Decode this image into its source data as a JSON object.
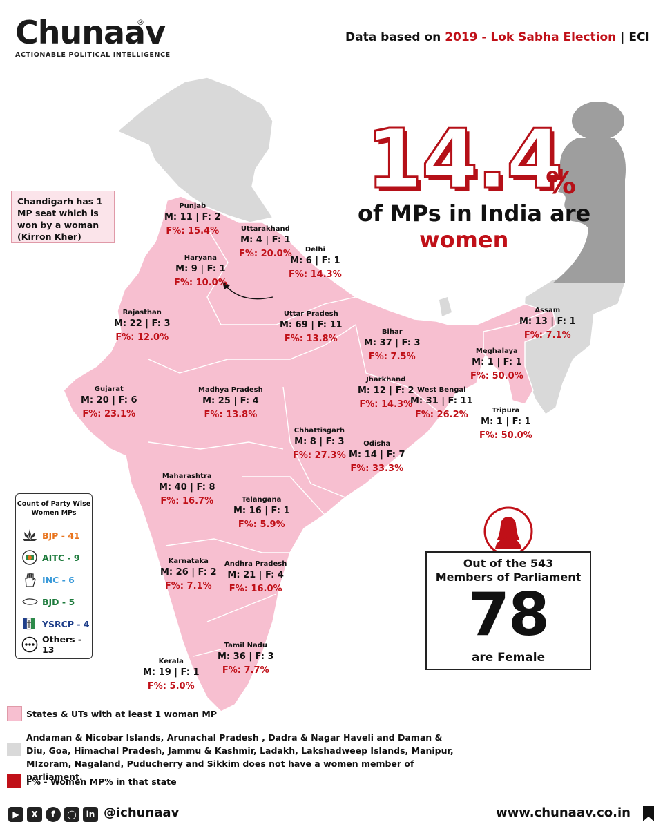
{
  "header": {
    "brand": "Chunaav",
    "brand_reg": "®",
    "tagline": "ACTIONABLE POLITICAL INTELLIGENCE",
    "source_prefix": "Data based on ",
    "source_highlight": "2019 - Lok Sabha Election",
    "source_suffix": " | ECI"
  },
  "headline": {
    "big_number": "14.4",
    "percent_sign": "%",
    "line1": "of MPs in India are",
    "line2": "women"
  },
  "note": {
    "chandigarh": "Chandigarh has 1 MP seat which is won by a woman (Kirron Kher)"
  },
  "colors": {
    "state_with_woman_mp": "#f7bfd0",
    "state_without": "#d9d9d9",
    "accent_red": "#c01018"
  },
  "states": [
    {
      "name": "Punjab",
      "counts": "M: 11 | F: 2",
      "pct": "F%: 15.4%"
    },
    {
      "name": "Uttarakhand",
      "counts": "M: 4 | F: 1",
      "pct": "F%: 20.0%"
    },
    {
      "name": "Delhi",
      "counts": "M: 6 | F: 1",
      "pct": "F%: 14.3%"
    },
    {
      "name": "Haryana",
      "counts": "M: 9 | F: 1",
      "pct": "F%: 10.0%"
    },
    {
      "name": "Rajasthan",
      "counts": "M: 22 | F: 3",
      "pct": "F%: 12.0%"
    },
    {
      "name": "Uttar Pradesh",
      "counts": "M: 69 | F: 11",
      "pct": "F%: 13.8%"
    },
    {
      "name": "Bihar",
      "counts": "M: 37 | F: 3",
      "pct": "F%: 7.5%"
    },
    {
      "name": "Assam",
      "counts": "M: 13 | F: 1",
      "pct": "F%: 7.1%"
    },
    {
      "name": "Meghalaya",
      "counts": "M: 1 | F: 1",
      "pct": "F%: 50.0%"
    },
    {
      "name": "Gujarat",
      "counts": "M: 20 | F: 6",
      "pct": "F%: 23.1%"
    },
    {
      "name": "Madhya Pradesh",
      "counts": "M: 25 | F: 4",
      "pct": "F%: 13.8%"
    },
    {
      "name": "Jharkhand",
      "counts": "M: 12 | F: 2",
      "pct": "F%: 14.3%"
    },
    {
      "name": "West Bengal",
      "counts": "M: 31 | F: 11",
      "pct": "F%: 26.2%"
    },
    {
      "name": "Tripura",
      "counts": "M: 1 | F: 1",
      "pct": "F%: 50.0%"
    },
    {
      "name": "Chhattisgarh",
      "counts": "M: 8 | F: 3",
      "pct": "F%: 27.3%"
    },
    {
      "name": "Odisha",
      "counts": "M: 14 | F: 7",
      "pct": "F%: 33.3%"
    },
    {
      "name": "Maharashtra",
      "counts": "M: 40 | F: 8",
      "pct": "F%: 16.7%"
    },
    {
      "name": "Telangana",
      "counts": "M: 16 | F: 1",
      "pct": "F%: 5.9%"
    },
    {
      "name": "Karnataka",
      "counts": "M: 26 | F: 2",
      "pct": "F%: 7.1%"
    },
    {
      "name": "Andhra Pradesh",
      "counts": "M: 21 | F: 4",
      "pct": "F%: 16.0%"
    },
    {
      "name": "Tamil Nadu",
      "counts": "M: 36 | F: 3",
      "pct": "F%: 7.7%"
    },
    {
      "name": "Kerala",
      "counts": "M: 19 | F: 1",
      "pct": "F%: 5.0%"
    }
  ],
  "party_legend": {
    "title": "Count of Party Wise Women MPs",
    "items": [
      {
        "label": "BJP - 41",
        "color": "#e8731c",
        "icon": "lotus-icon"
      },
      {
        "label": "AITC - 9",
        "color": "#1d7a3c",
        "icon": "aitc-flower-icon"
      },
      {
        "label": "INC - 6",
        "color": "#3a9ad9",
        "icon": "hand-icon"
      },
      {
        "label": "BJD - 5",
        "color": "#1d7a3c",
        "icon": "conch-icon"
      },
      {
        "label": "YSRCP - 4",
        "color": "#1f3f8a",
        "icon": "fan-icon"
      },
      {
        "label": "Others - 13",
        "color": "#111111",
        "icon": "more-icon"
      }
    ]
  },
  "stats": {
    "line1": "Out of the 543",
    "line2": "Members of Parliament",
    "number": "78",
    "line3": "are Female"
  },
  "legend": {
    "pink": "States & UTs with at least 1 woman MP",
    "grey": "Andaman & Nicobar Islands, Arunachal Pradesh , Dadra & Nagar Haveli and Daman & Diu, Goa, Himachal Pradesh, Jammu & Kashmir, Ladakh, Lakshadweep Islands, Manipur, MIzoram, Nagaland, Puducherry and Sikkim does not have a women member of parliament.",
    "red": "F% - Women MP% in that state"
  },
  "footer": {
    "handle": "@ichunaav",
    "website": "www.chunaav.co.in",
    "social_icons": [
      "youtube-icon",
      "x-icon",
      "facebook-icon",
      "instagram-icon",
      "linkedin-icon"
    ]
  }
}
